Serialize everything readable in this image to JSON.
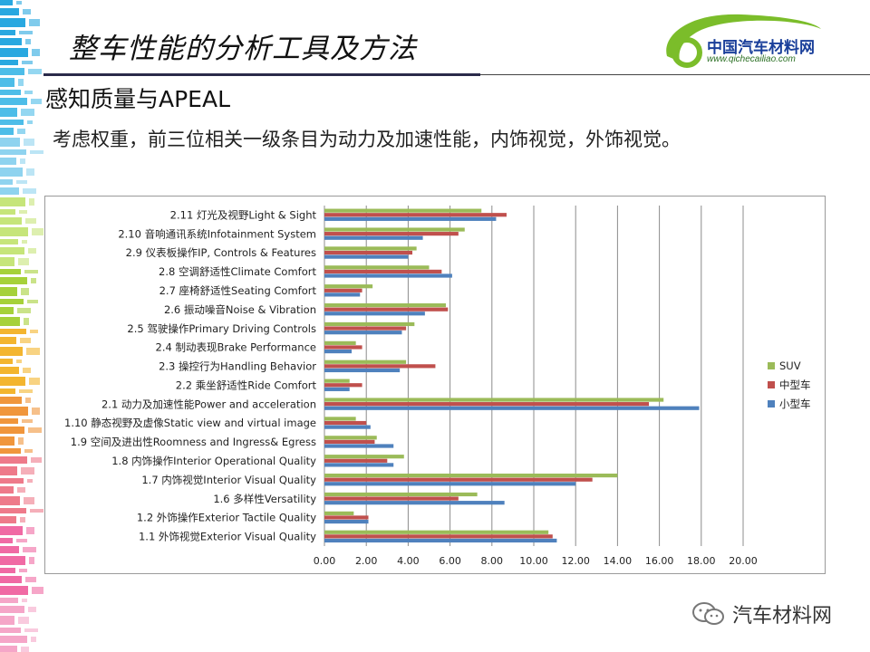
{
  "header": {
    "title": "整车性能的分析工具及方法",
    "logo_text": "中国汽车材料网",
    "logo_url": "www.qichecailiao.com"
  },
  "section_heading": "感知质量与APEAL",
  "subtitle": "考虑权重，前三位相关一级条目为动力及加速性能，内饰视觉，外饰视觉。",
  "watermark_text": "汽车材料网",
  "colors": {
    "suv": "#9bbb59",
    "mid": "#c0504d",
    "small": "#4f81bd",
    "accent_rule": "#2a2a4a"
  },
  "chart_data": {
    "type": "bar",
    "orientation": "horizontal",
    "categories": [
      "2.11 灯光及视野Light & Sight",
      "2.10 音响通讯系统Infotainment System",
      "2.9 仪表板操作IP, Controls & Features",
      "2.8 空调舒适性Climate Comfort",
      "2.7 座椅舒适性Seating Comfort",
      "2.6 振动噪音Noise & Vibration",
      "2.5 驾驶操作Primary Driving Controls",
      "2.4 制动表现Brake Performance",
      "2.3 操控行为Handling Behavior",
      "2.2 乘坐舒适性Ride Comfort",
      "2.1 动力及加速性能Power and acceleration",
      "1.10 静态视野及虚像Static view and virtual image",
      "1.9 空间及进出性Roomness and Ingress& Egress",
      "1.8 内饰操作Interior Operational Quality",
      "1.7 内饰视觉Interior Visual Quality",
      "1.6 多样性Versatility",
      "1.2 外饰操作Exterior Tactile Quality",
      "1.1 外饰视觉Exterior Visual Quality"
    ],
    "series": [
      {
        "name": "SUV",
        "color": "#9bbb59",
        "values": [
          7.5,
          6.7,
          4.4,
          5.0,
          2.3,
          5.8,
          4.3,
          1.5,
          3.9,
          1.2,
          16.2,
          1.5,
          2.5,
          3.8,
          14.0,
          7.3,
          1.4,
          10.7
        ]
      },
      {
        "name": "中型车",
        "color": "#c0504d",
        "values": [
          8.7,
          6.4,
          4.2,
          5.6,
          1.8,
          5.9,
          3.9,
          1.8,
          5.3,
          1.8,
          15.5,
          2.0,
          2.4,
          3.0,
          12.8,
          6.4,
          2.1,
          10.9
        ]
      },
      {
        "name": "小型车",
        "color": "#4f81bd",
        "values": [
          8.2,
          4.7,
          4.0,
          6.1,
          1.7,
          4.8,
          3.7,
          1.3,
          3.6,
          1.2,
          17.9,
          2.2,
          3.3,
          3.3,
          12.0,
          8.6,
          2.1,
          11.1
        ]
      }
    ],
    "xlim": [
      0,
      20
    ],
    "xticks": [
      "0.00",
      "2.00",
      "4.00",
      "6.00",
      "8.00",
      "10.00",
      "12.00",
      "14.00",
      "16.00",
      "18.00",
      "20.00"
    ],
    "grid": true,
    "legend_position": "right",
    "legend_order": [
      "SUV",
      "中型车",
      "小型车"
    ]
  }
}
